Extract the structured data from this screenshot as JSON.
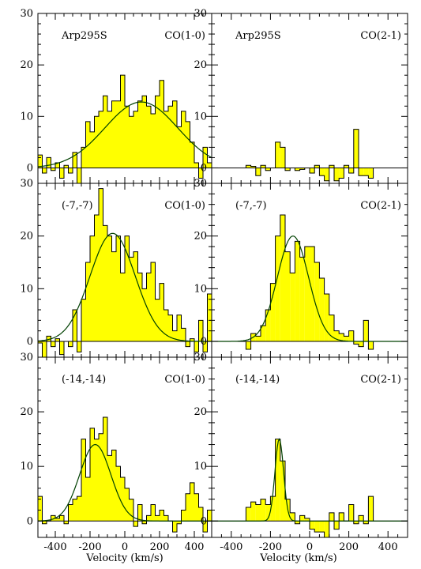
{
  "figure": {
    "xlabel": "Velocity (km/s)",
    "x_ticks": [
      -400,
      -200,
      0,
      200,
      400
    ],
    "y_ticks": [
      0,
      10,
      20,
      30
    ],
    "colors": {
      "bars": "#ffff00",
      "fit": "#004000",
      "axes": "#000000"
    }
  },
  "chart_data": [
    {
      "type": "bar",
      "panel": "top-left",
      "source": "Arp295S",
      "line": "CO(1-0)",
      "xlim": [
        -500,
        500
      ],
      "ylim": [
        -3,
        30
      ],
      "bin_width": 25,
      "x": [
        -487.5,
        -462.5,
        -437.5,
        -412.5,
        -387.5,
        -362.5,
        -337.5,
        -312.5,
        -287.5,
        -262.5,
        -237.5,
        -212.5,
        -187.5,
        -162.5,
        -137.5,
        -112.5,
        -87.5,
        -62.5,
        -37.5,
        -12.5,
        12.5,
        37.5,
        62.5,
        87.5,
        112.5,
        137.5,
        162.5,
        187.5,
        212.5,
        237.5,
        262.5,
        287.5,
        312.5,
        337.5,
        362.5,
        387.5,
        412.5,
        437.5,
        462.5,
        487.5
      ],
      "y": [
        2.5,
        -1.0,
        2.0,
        -0.5,
        1.0,
        -2.0,
        0.5,
        -1.0,
        3.0,
        -3.0,
        4.0,
        9.0,
        7.0,
        10.0,
        11.0,
        14.0,
        11.0,
        13.0,
        13.0,
        18.0,
        12.0,
        10.0,
        11.0,
        13.0,
        14.0,
        12.0,
        10.5,
        14.0,
        17.0,
        11.0,
        12.0,
        13.0,
        8.0,
        11.0,
        9.0,
        5.0,
        1.0,
        -2.0,
        4.0,
        1.0
      ],
      "fit": {
        "type": "gaussian",
        "amplitude": 12.8,
        "center": 95,
        "sigma": 210
      }
    },
    {
      "type": "bar",
      "panel": "top-right",
      "source": "Arp295S",
      "line": "CO(2-1)",
      "xlim": [
        -500,
        500
      ],
      "ylim": [
        -3,
        30
      ],
      "bin_width": 25,
      "x": [
        -312.5,
        -287.5,
        -262.5,
        -237.5,
        -212.5,
        -187.5,
        -162.5,
        -137.5,
        -112.5,
        -87.5,
        -62.5,
        -37.5,
        -12.5,
        12.5,
        37.5,
        62.5,
        87.5,
        112.5,
        137.5,
        162.5,
        187.5,
        212.5,
        237.5,
        262.5,
        287.5,
        312.5
      ],
      "y": [
        0.5,
        0.3,
        -1.5,
        0.5,
        -0.5,
        0.0,
        5.0,
        4.0,
        -0.5,
        0.0,
        -0.5,
        -0.3,
        0.0,
        -1.0,
        0.5,
        -1.5,
        -2.5,
        0.5,
        -2.5,
        -2.0,
        0.5,
        -1.0,
        7.5,
        -1.5,
        -1.5,
        -2.0
      ],
      "fit": null
    },
    {
      "type": "bar",
      "panel": "middle-left",
      "source": "(-7,-7)",
      "line": "CO(1-0)",
      "xlim": [
        -500,
        500
      ],
      "ylim": [
        -3,
        30
      ],
      "bin_width": 25,
      "x": [
        -487.5,
        -462.5,
        -437.5,
        -412.5,
        -387.5,
        -362.5,
        -337.5,
        -312.5,
        -287.5,
        -262.5,
        -237.5,
        -212.5,
        -187.5,
        -162.5,
        -137.5,
        -112.5,
        -87.5,
        -62.5,
        -37.5,
        -12.5,
        12.5,
        37.5,
        62.5,
        87.5,
        112.5,
        137.5,
        162.5,
        187.5,
        212.5,
        237.5,
        262.5,
        287.5,
        312.5,
        337.5,
        362.5,
        387.5,
        412.5,
        437.5,
        462.5,
        487.5
      ],
      "y": [
        -0.3,
        -3.0,
        1.0,
        -1.0,
        0.5,
        -2.5,
        0.0,
        -1.0,
        6.0,
        -2.0,
        8.0,
        15.0,
        20.0,
        24.0,
        29.0,
        22.0,
        20.0,
        17.0,
        20.0,
        13.0,
        20.0,
        16.0,
        17.0,
        13.0,
        10.0,
        13.0,
        15.0,
        8.0,
        11.0,
        6.0,
        5.0,
        2.0,
        5.0,
        2.5,
        -1.0,
        0.5,
        -2.0,
        4.0,
        -2.0,
        9.0
      ],
      "fit": {
        "type": "gaussian",
        "amplitude": 20.5,
        "center": -70,
        "sigma": 130
      }
    },
    {
      "type": "bar",
      "panel": "middle-right",
      "source": "(-7,-7)",
      "line": "CO(2-1)",
      "xlim": [
        -500,
        500
      ],
      "ylim": [
        -3,
        30
      ],
      "bin_width": 25,
      "x": [
        -312.5,
        -287.5,
        -262.5,
        -237.5,
        -212.5,
        -187.5,
        -162.5,
        -137.5,
        -112.5,
        -87.5,
        -62.5,
        -37.5,
        -12.5,
        12.5,
        37.5,
        62.5,
        87.5,
        112.5,
        137.5,
        162.5,
        187.5,
        212.5,
        237.5,
        262.5,
        287.5,
        312.5
      ],
      "y": [
        -1.5,
        1.5,
        1.0,
        3.0,
        6.0,
        11.0,
        20.0,
        24.0,
        17.0,
        13.0,
        19.0,
        16.0,
        18.0,
        18.0,
        15.0,
        12.0,
        9.0,
        5.0,
        2.0,
        1.5,
        1.0,
        2.0,
        -0.5,
        -1.0,
        4.0,
        -1.5
      ],
      "fit": {
        "type": "gaussian",
        "amplitude": 20.0,
        "center": -85,
        "sigma": 80
      }
    },
    {
      "type": "bar",
      "panel": "bottom-left",
      "source": "(-14,-14)",
      "line": "CO(1-0)",
      "xlim": [
        -500,
        500
      ],
      "ylim": [
        -3,
        30
      ],
      "bin_width": 25,
      "x": [
        -487.5,
        -462.5,
        -437.5,
        -412.5,
        -387.5,
        -362.5,
        -337.5,
        -312.5,
        -287.5,
        -262.5,
        -237.5,
        -212.5,
        -187.5,
        -162.5,
        -137.5,
        -112.5,
        -87.5,
        -62.5,
        -37.5,
        -12.5,
        12.5,
        37.5,
        62.5,
        87.5,
        112.5,
        137.5,
        162.5,
        187.5,
        212.5,
        237.5,
        262.5,
        287.5,
        312.5,
        337.5,
        362.5,
        387.5,
        412.5,
        437.5,
        462.5,
        487.5
      ],
      "y": [
        4.5,
        -0.5,
        0.0,
        1.0,
        0.5,
        1.0,
        -0.5,
        3.0,
        4.0,
        4.5,
        15.0,
        8.0,
        17.0,
        15.0,
        16.0,
        19.0,
        12.0,
        13.0,
        10.0,
        8.0,
        6.0,
        4.0,
        -1.0,
        3.0,
        -0.5,
        1.0,
        3.0,
        1.0,
        2.0,
        1.0,
        0.0,
        -2.0,
        -0.5,
        2.0,
        5.0,
        7.0,
        5.0,
        2.5,
        -2.0,
        2.0
      ],
      "fit": {
        "type": "gaussian",
        "amplitude": 14.0,
        "center": -170,
        "sigma": 90
      }
    },
    {
      "type": "bar",
      "panel": "bottom-right",
      "source": "(-14,-14)",
      "line": "CO(2-1)",
      "xlim": [
        -500,
        500
      ],
      "ylim": [
        -3,
        30
      ],
      "bin_width": 25,
      "x": [
        -312.5,
        -287.5,
        -262.5,
        -237.5,
        -212.5,
        -187.5,
        -162.5,
        -137.5,
        -112.5,
        -87.5,
        -62.5,
        -37.5,
        -12.5,
        12.5,
        37.5,
        62.5,
        87.5,
        112.5,
        137.5,
        162.5,
        187.5,
        212.5,
        237.5,
        262.5,
        287.5,
        312.5
      ],
      "y": [
        2.5,
        3.5,
        3.0,
        4.0,
        3.0,
        4.5,
        15.0,
        11.0,
        4.0,
        1.5,
        -0.5,
        1.0,
        0.5,
        -1.5,
        -2.0,
        -2.0,
        -3.0,
        1.5,
        -1.5,
        1.5,
        0.0,
        3.0,
        -0.5,
        1.0,
        -0.5,
        4.5
      ],
      "fit": {
        "type": "gaussian",
        "amplitude": 15.0,
        "center": -155,
        "sigma": 22
      }
    }
  ]
}
